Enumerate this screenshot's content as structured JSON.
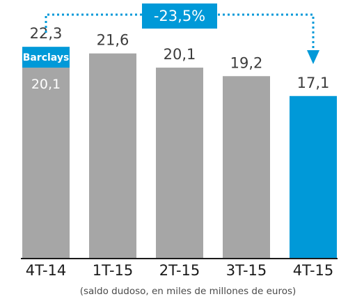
{
  "chart_data": {
    "type": "bar",
    "categories": [
      "4T-14",
      "1T-15",
      "2T-15",
      "3T-15",
      "4T-15"
    ],
    "values": [
      20.1,
      21.6,
      20.1,
      19.2,
      17.1
    ],
    "value_labels": [
      "20,1",
      "21,6",
      "20,1",
      "19,2",
      "17,1"
    ],
    "stacked_extra": {
      "category": "4T-14",
      "name": "Barclays",
      "total": 22.3,
      "total_label": "22,3"
    },
    "ylim": [
      0,
      24.3
    ],
    "grid": false,
    "note": "(saldo dudoso, en miles de millones de euros)",
    "change_callout": {
      "label": "-23,5%",
      "from": "4T-14",
      "to": "4T-15"
    },
    "colors": {
      "default_bar": "#a6a6a6",
      "highlight_bar": "#0099d8",
      "callout": "#0099d8",
      "axis": "#1a1a1a"
    }
  }
}
